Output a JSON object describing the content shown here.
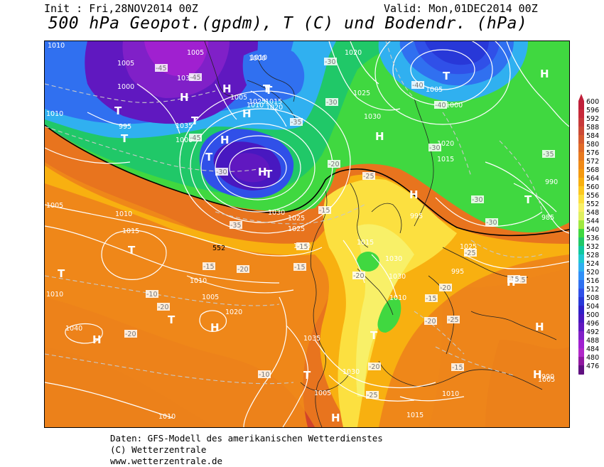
{
  "header": {
    "init": "Init : Fri,28NOV2014 00Z",
    "valid": "Valid: Mon,01DEC2014 00Z",
    "title": "500 hPa Geopot.(gpdm), T (C) und Bodendr. (hPa)"
  },
  "legend": {
    "values": [
      "600",
      "596",
      "592",
      "588",
      "584",
      "580",
      "576",
      "572",
      "568",
      "564",
      "560",
      "556",
      "552",
      "548",
      "544",
      "540",
      "536",
      "532",
      "528",
      "524",
      "520",
      "516",
      "512",
      "508",
      "504",
      "500",
      "496",
      "492",
      "488",
      "484",
      "480",
      "476"
    ],
    "colors": [
      "#c0203a",
      "#c82a3a",
      "#c83a3a",
      "#cc4a36",
      "#d65a30",
      "#e06a28",
      "#e87a20",
      "#f08a18",
      "#f49a10",
      "#f8b010",
      "#fcc820",
      "#fce040",
      "#f8f068",
      "#e0f060",
      "#a0e840",
      "#40d840",
      "#20c868",
      "#10c8a0",
      "#20c8d0",
      "#30b0f0",
      "#3090f8",
      "#3070f0",
      "#3050e8",
      "#2838d8",
      "#3020c8",
      "#4818c0",
      "#6018c0",
      "#8020c8",
      "#a020d0",
      "#b028c8",
      "#9018a0",
      "#601080"
    ]
  },
  "pressure_labels": [
    {
      "text": "1005"
    },
    {
      "text": "1005"
    },
    {
      "text": "1000"
    },
    {
      "text": "1010"
    },
    {
      "text": "995"
    },
    {
      "text": "1010"
    },
    {
      "text": "1000"
    },
    {
      "text": "1005"
    },
    {
      "text": "1010"
    },
    {
      "text": "1015"
    },
    {
      "text": "1020"
    },
    {
      "text": "1025"
    },
    {
      "text": "1030"
    },
    {
      "text": "1035"
    },
    {
      "text": "1000"
    },
    {
      "text": "1005"
    },
    {
      "text": "1010"
    },
    {
      "text": "1015"
    },
    {
      "text": "1030"
    },
    {
      "text": "1025"
    },
    {
      "text": "1025"
    },
    {
      "text": "1020"
    },
    {
      "text": "1010"
    },
    {
      "text": "1005"
    },
    {
      "text": "1010"
    },
    {
      "text": "1020"
    },
    {
      "text": "1040"
    },
    {
      "text": "1035"
    },
    {
      "text": "1030"
    },
    {
      "text": "1005"
    },
    {
      "text": "1010"
    },
    {
      "text": "1015"
    },
    {
      "text": "1020"
    },
    {
      "text": "1025"
    },
    {
      "text": "1030"
    },
    {
      "text": "1015"
    },
    {
      "text": "1030"
    },
    {
      "text": "1030"
    },
    {
      "text": "1010"
    },
    {
      "text": "1005"
    },
    {
      "text": "1000"
    },
    {
      "text": "1020"
    },
    {
      "text": "1015"
    },
    {
      "text": "1010"
    },
    {
      "text": "1025"
    },
    {
      "text": "995"
    },
    {
      "text": "990"
    },
    {
      "text": "985"
    },
    {
      "text": "995"
    },
    {
      "text": "990"
    },
    {
      "text": "1005"
    },
    {
      "text": "1010"
    }
  ],
  "temp_labels": [
    {
      "text": "-45"
    },
    {
      "text": "-45"
    },
    {
      "text": "-45"
    },
    {
      "text": "-40"
    },
    {
      "text": "-40"
    },
    {
      "text": "-35"
    },
    {
      "text": "-35"
    },
    {
      "text": "-30"
    },
    {
      "text": "-30"
    },
    {
      "text": "-30"
    },
    {
      "text": "-30"
    },
    {
      "text": "-35"
    },
    {
      "text": "-25"
    },
    {
      "text": "-20"
    },
    {
      "text": "-15"
    },
    {
      "text": "-15"
    },
    {
      "text": "-15"
    },
    {
      "text": "-20"
    },
    {
      "text": "-15"
    },
    {
      "text": "-10"
    },
    {
      "text": "-10"
    },
    {
      "text": "-20"
    },
    {
      "text": "-20"
    },
    {
      "text": "-15"
    },
    {
      "text": "-20"
    },
    {
      "text": "-25"
    },
    {
      "text": "-20"
    },
    {
      "text": "-30"
    },
    {
      "text": "-30"
    },
    {
      "text": "-25"
    },
    {
      "text": "-20"
    },
    {
      "text": "-25"
    },
    {
      "text": "-20"
    },
    {
      "text": "-15"
    },
    {
      "text": "-15"
    },
    {
      "text": "-15"
    }
  ],
  "centers": [
    {
      "text": "T"
    },
    {
      "text": "T"
    },
    {
      "text": "H"
    },
    {
      "text": "T"
    },
    {
      "text": "H"
    },
    {
      "text": "T"
    },
    {
      "text": "H"
    },
    {
      "text": "T"
    },
    {
      "text": "H"
    },
    {
      "text": "T"
    },
    {
      "text": "H"
    },
    {
      "text": "T"
    },
    {
      "text": "H"
    },
    {
      "text": "H"
    },
    {
      "text": "T"
    },
    {
      "text": "H"
    },
    {
      "text": "T"
    },
    {
      "text": "T"
    },
    {
      "text": "T"
    },
    {
      "text": "H"
    },
    {
      "text": "H"
    },
    {
      "text": "T"
    },
    {
      "text": "H"
    },
    {
      "text": "T"
    },
    {
      "text": "T"
    },
    {
      "text": "H"
    },
    {
      "text": "H"
    },
    {
      "text": "H"
    }
  ],
  "line_label": "552",
  "footer": {
    "line1": "Daten: GFS-Modell des amerikanischen Wetterdienstes",
    "line2": "(C) Wetterzentrale",
    "line3": "www.wetterzentrale.de"
  }
}
